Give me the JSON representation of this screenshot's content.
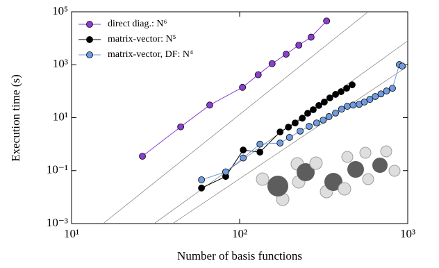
{
  "chart_data": {
    "type": "line",
    "log_x": true,
    "log_y": true,
    "xlabel": "Number of basis functions",
    "ylabel": "Execution time (s)",
    "xlim": [
      10,
      1000
    ],
    "ylim": [
      0.001,
      100000
    ],
    "xticks": [
      {
        "value": 10,
        "label": "10¹"
      },
      {
        "value": 100,
        "label": "10²"
      },
      {
        "value": 1000,
        "label": "10³"
      }
    ],
    "yticks": [
      {
        "value": 0.001,
        "label": "10⁻³"
      },
      {
        "value": 0.1,
        "label": "10⁻¹"
      },
      {
        "value": 10,
        "label": "10¹"
      },
      {
        "value": 1000,
        "label": "10³"
      },
      {
        "value": 100000,
        "label": "10⁵"
      }
    ],
    "legend": "upper left",
    "series": [
      {
        "name": "direct diag.: N⁶",
        "color": "#8a3fd0",
        "x": [
          26.4,
          44.6,
          66.4,
          104,
          129,
          156,
          189,
          225,
          266,
          329
        ],
        "values": [
          0.35,
          4.5,
          30,
          140,
          420,
          1100,
          2500,
          5500,
          11000,
          45000
        ]
      },
      {
        "name": "matrix-vector: N⁵",
        "color": "#000000",
        "x": [
          59.3,
          82.6,
          105,
          132,
          174,
          195,
          214,
          236,
          254,
          274,
          296,
          319,
          344,
          372,
          401,
          433,
          467
        ],
        "values": [
          0.022,
          0.06,
          0.6,
          0.5,
          2.9,
          4.4,
          6.3,
          9.6,
          14.7,
          20,
          29,
          39,
          56,
          76,
          96,
          129,
          174
        ]
      },
      {
        "name": "matrix-vector, DF: N⁴",
        "color": "#6f9be0",
        "x": [
          59.3,
          82.6,
          105,
          132,
          174,
          198,
          229,
          259,
          287,
          314,
          340,
          372,
          404,
          437,
          473,
          514,
          552,
          595,
          641,
          693,
          748,
          811,
          891,
          927
        ],
        "values": [
          0.045,
          0.09,
          0.3,
          1.0,
          1.1,
          1.8,
          3.1,
          4.7,
          6.3,
          8.1,
          11,
          15,
          21,
          27,
          30,
          32,
          39,
          49,
          63,
          79,
          102,
          129,
          1010,
          890
        ]
      }
    ],
    "fit_lines": [
      {
        "color": "#888888",
        "x": [
          15.4,
          581
        ],
        "values": [
          0.001,
          100000
        ]
      },
      {
        "color": "#888888",
        "x": [
          31,
          1000
        ],
        "values": [
          0.001,
          8000
        ]
      },
      {
        "color": "#888888",
        "x": [
          40,
          1000
        ],
        "values": [
          0.001,
          890
        ]
      }
    ]
  }
}
